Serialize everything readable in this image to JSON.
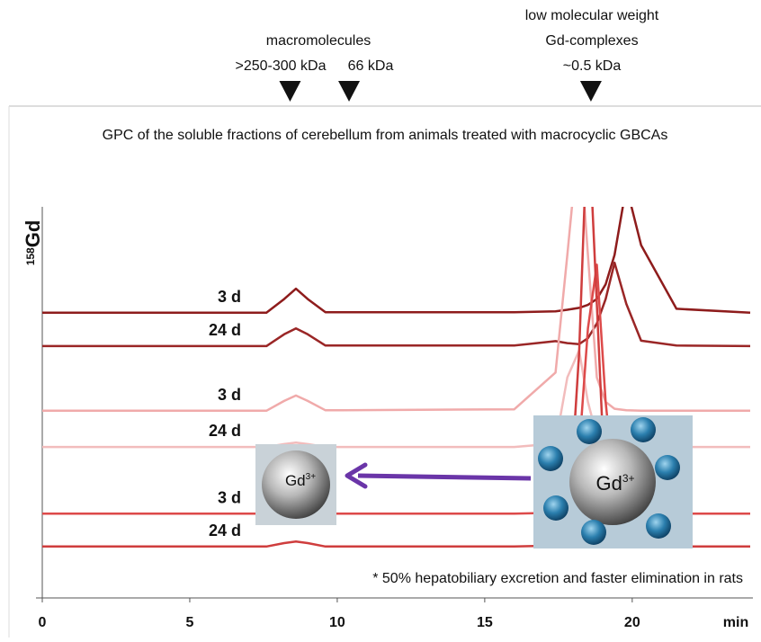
{
  "chart_data": {
    "type": "line",
    "header": {
      "group1": [
        "macromolecules",
        ">250-300 kDa"
      ],
      "marker2": "66 kDa",
      "group3": [
        "low molecular weight",
        "Gd-complexes",
        "~0.5 kDa"
      ]
    },
    "markers": [
      8.4,
      10.4,
      18.6
    ],
    "title": "GPC of the soluble fractions of cerebellum from animals treated with macrocyclic GBCAs",
    "ylabel_sup": "158",
    "ylabel": "Gd",
    "xlabel": "min",
    "footnote": "* 50% hepatobiliary excretion and faster elimination in rats",
    "image_small": {
      "text": "Gd",
      "sup": "3+"
    },
    "image_large": {
      "text": "Gd",
      "sup": "3+"
    },
    "xlim": [
      0,
      24
    ],
    "ylim": [
      0,
      100
    ],
    "xticks": [
      0,
      5,
      10,
      15,
      20
    ],
    "x": [
      0,
      7.6,
      8.2,
      8.6,
      9.0,
      9.6,
      16,
      17.4,
      17.8,
      18.2,
      18.5,
      18.8,
      19.1,
      19.4,
      19.8,
      20.3,
      21.5,
      24
    ],
    "series": [
      {
        "name": "3 d",
        "color": "#8e1c1c",
        "values": [
          58.2,
          58.2,
          61,
          63.1,
          61,
          58.3,
          58.3,
          58.5,
          58.8,
          59.2,
          59.8,
          61,
          64,
          70,
          84,
          72,
          59,
          58.2
        ]
      },
      {
        "name": "24 d",
        "color": "#9a2626",
        "values": [
          51.4,
          51.4,
          53.8,
          55,
          53.8,
          51.5,
          51.5,
          52.4,
          52,
          51.8,
          53,
          56,
          61,
          68.4,
          60,
          52.5,
          51.5,
          51.4
        ]
      },
      {
        "name": "3 d",
        "color": "#f0aaaa",
        "values": [
          38.2,
          38.2,
          40.2,
          41.3,
          40.2,
          38.3,
          38.5,
          46,
          70,
          95,
          70,
          45,
          40,
          38.6,
          38.3,
          38.2,
          38.2,
          38.2
        ]
      },
      {
        "name": "24 d",
        "color": "#f2bcbc",
        "values": [
          30.8,
          30.8,
          31.4,
          31.7,
          31.4,
          30.8,
          30.8,
          31.5,
          45,
          50.5,
          40,
          33,
          31.2,
          30.9,
          30.8,
          30.8,
          30.8,
          30.8
        ]
      },
      {
        "name": "3 d",
        "color": "#dd4a4a",
        "values": [
          17.2,
          17.2,
          17.2,
          17.2,
          17.2,
          17.2,
          17.2,
          17.4,
          18,
          30,
          55,
          68,
          40,
          22,
          18,
          17.4,
          17.2,
          17.2
        ]
      },
      {
        "name": "24 d",
        "color": "#cf3d3d",
        "values": [
          10.5,
          10.5,
          11.2,
          11.5,
          11.2,
          10.5,
          10.5,
          10.7,
          11.5,
          50,
          100,
          60,
          20,
          12,
          10.8,
          10.6,
          10.5,
          10.5
        ]
      }
    ]
  }
}
